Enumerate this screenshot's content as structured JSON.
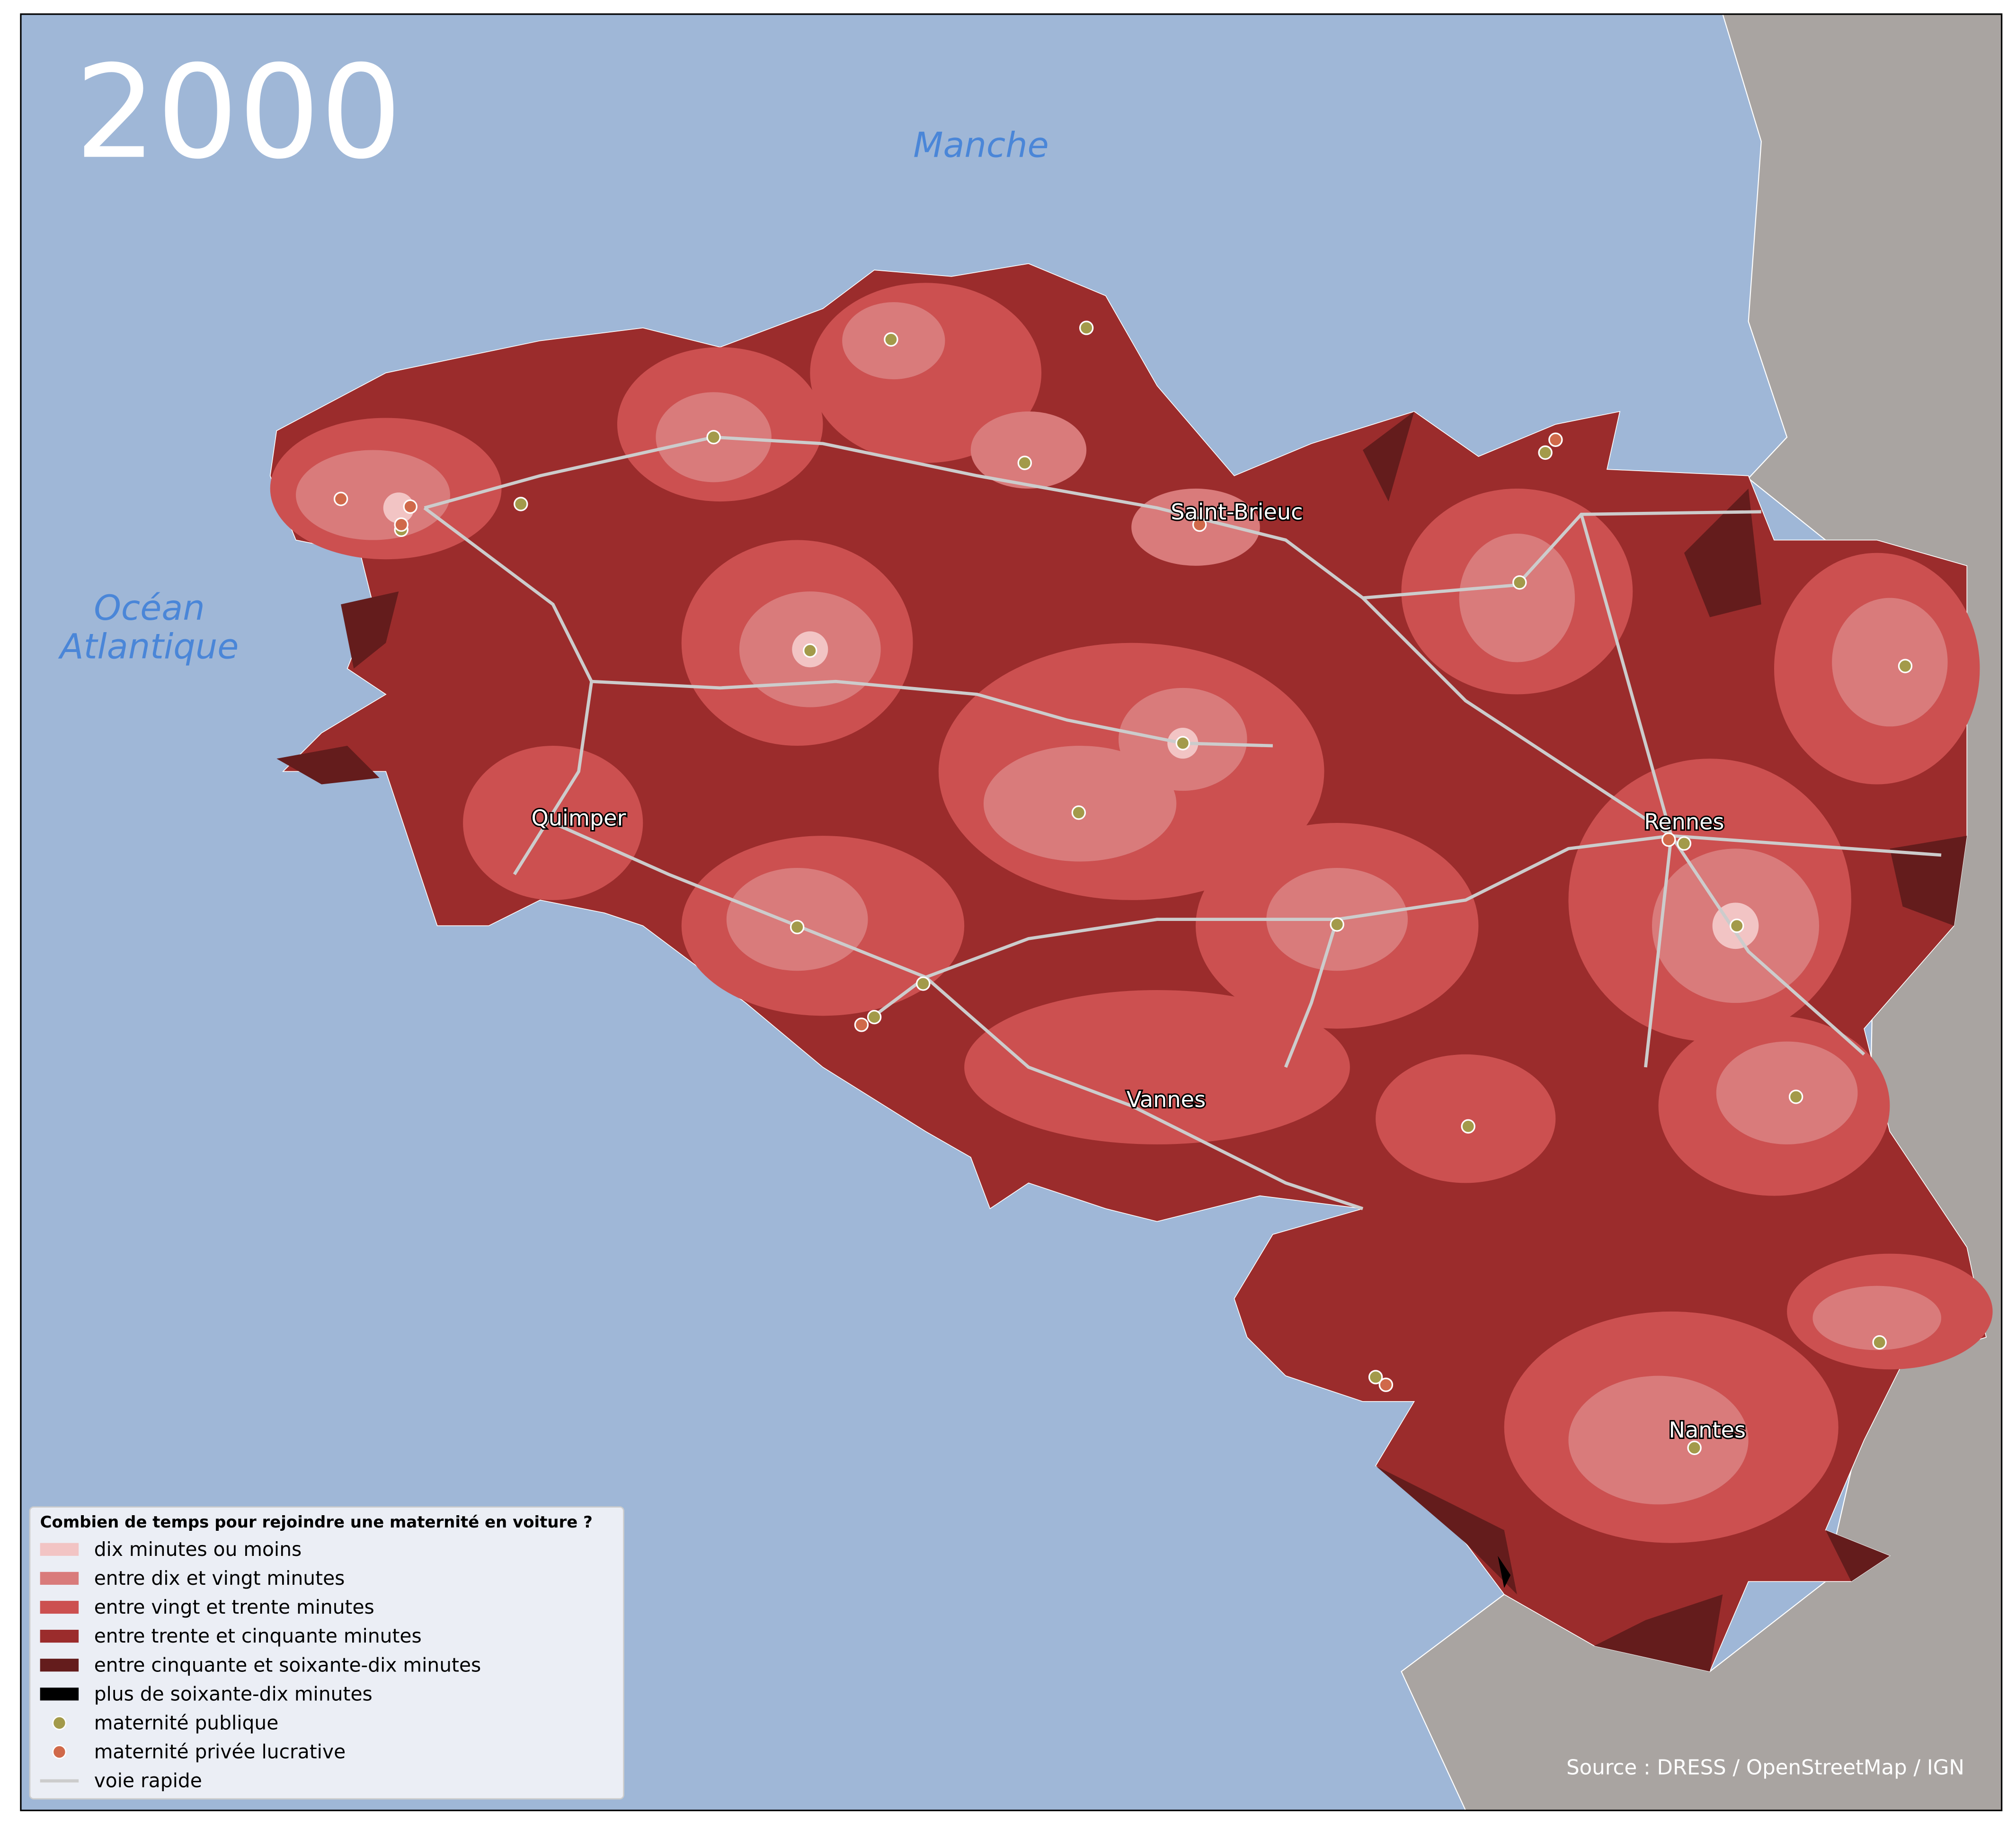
{
  "title": "2000",
  "seas": [
    {
      "lines": [
        "Manche"
      ]
    },
    {
      "lines": [
        "Océan",
        "Atlantique"
      ]
    }
  ],
  "cities": [
    "Saint-Brieuc",
    "Quimper",
    "Rennes",
    "Vannes",
    "Nantes"
  ],
  "legend": {
    "title": "Combien de temps pour rejoindre une maternité en voiture ?",
    "items": [
      {
        "label": "dix minutes ou moins",
        "color": "#f2c4c4",
        "symbol": "patch"
      },
      {
        "label": "entre dix et vingt minutes",
        "color": "#d97b7b",
        "symbol": "patch"
      },
      {
        "label": "entre vingt et trente minutes",
        "color": "#cc5050",
        "symbol": "patch"
      },
      {
        "label": "entre trente et cinquante minutes",
        "color": "#9b2c2c",
        "symbol": "patch"
      },
      {
        "label": "entre cinquante et soixante-dix minutes",
        "color": "#641c1c",
        "symbol": "patch"
      },
      {
        "label": "plus de soixante-dix minutes",
        "color": "#000000",
        "symbol": "patch"
      },
      {
        "label": "maternité publique",
        "color": "#a39a4a",
        "symbol": "dot"
      },
      {
        "label": "maternité privée lucrative",
        "color": "#d0694a",
        "symbol": "dot"
      },
      {
        "label": "voie rapide",
        "color": "#cccccc",
        "symbol": "line"
      }
    ]
  },
  "source": "Source : DRESS / OpenStreetMap / IGN"
}
